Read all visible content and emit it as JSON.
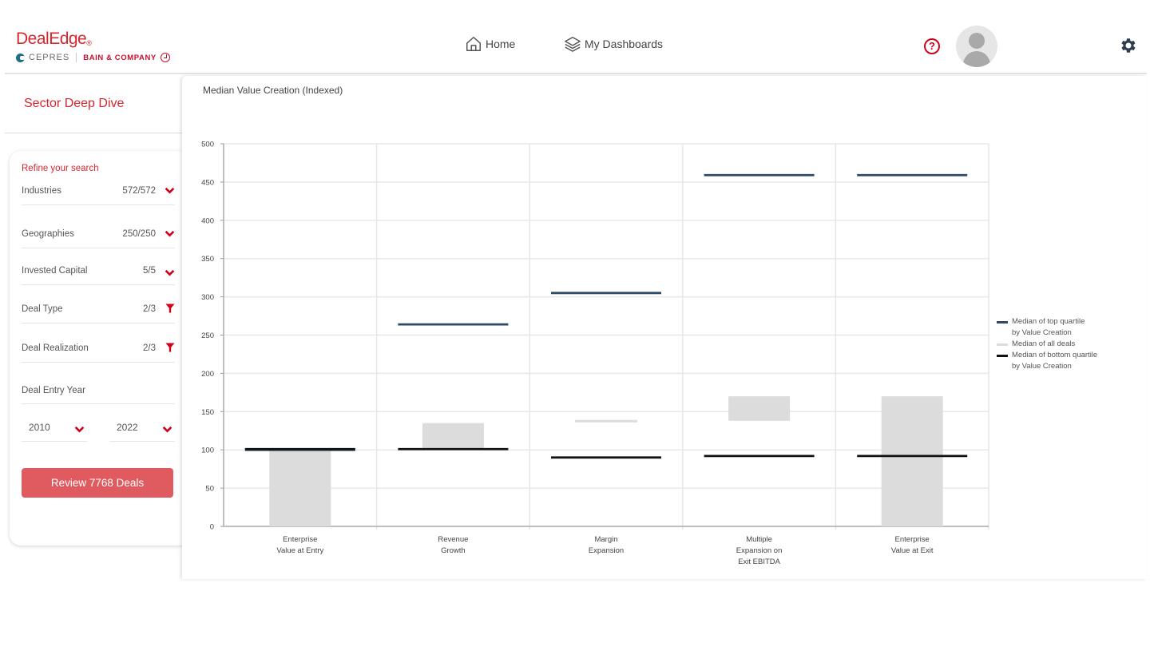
{
  "header": {
    "logo": {
      "brand": "DealEdge",
      "registered": "®",
      "partner1": "CEPRES",
      "partner2": "BAIN & COMPANY"
    },
    "nav": [
      {
        "label": "Home",
        "icon": "home-icon"
      },
      {
        "label": "My Dashboards",
        "icon": "layers-icon"
      }
    ],
    "help_symbol": "?",
    "icons": [
      "help-icon",
      "avatar",
      "gear-icon"
    ]
  },
  "sidebar": {
    "title": "Sector Deep Dive",
    "refine_label": "Refine your search",
    "filters": [
      {
        "label": "Industries",
        "value": "572/572",
        "icon": "chevron-down-icon"
      },
      {
        "label": "Geographies",
        "value": "250/250",
        "icon": "chevron-down-icon"
      },
      {
        "label": "Invested Capital",
        "value": "5/5",
        "icon": "chevron-down-icon"
      },
      {
        "label": "Deal Type",
        "value": "2/3",
        "icon": "filter-icon"
      },
      {
        "label": "Deal Realization",
        "value": "2/3",
        "icon": "filter-icon"
      }
    ],
    "entry_year_label": "Deal Entry Year",
    "year_from": "2010",
    "year_to": "2022",
    "review_button": "Review 7768 Deals"
  },
  "colors": {
    "brand_red": "#d8262f",
    "button_red": "#e05b5f",
    "top_quartile": "#2e4a66",
    "all_deals": "#dcdcdc",
    "bottom_quartile": "#111111"
  },
  "chart_data": {
    "type": "bar",
    "title": "Median Value Creation (Indexed)",
    "xlabel": "",
    "ylabel": "",
    "ylim": [
      0,
      500
    ],
    "yticks": [
      0,
      50,
      100,
      150,
      200,
      250,
      300,
      350,
      400,
      450,
      500
    ],
    "grid": true,
    "legend_position": "right",
    "categories": [
      "Enterprise Value at Entry",
      "Revenue Growth",
      "Margin Expansion",
      "Multiple Expansion on Exit EBITDA",
      "Enterprise Value at Exit"
    ],
    "category_lines": [
      [
        "Enterprise",
        "Value at Entry"
      ],
      [
        "Revenue",
        "Growth"
      ],
      [
        "Margin",
        "Expansion"
      ],
      [
        "Multiple",
        "Expansion on",
        "Exit EBITDA"
      ],
      [
        "Enterprise",
        "Value at Exit"
      ]
    ],
    "series": [
      {
        "name": "Median of top quartile by Value Creation",
        "style": "marker-line",
        "values": [
          100,
          264,
          305,
          459,
          459
        ]
      },
      {
        "name": "Median of all deals",
        "style": "waterfall-bar",
        "ranges": [
          [
            0,
            100
          ],
          [
            100,
            135
          ],
          [
            137,
            138
          ],
          [
            138,
            170
          ],
          [
            0,
            170
          ]
        ]
      },
      {
        "name": "Median of bottom quartile by Value Creation",
        "style": "marker-line",
        "values": [
          101,
          101,
          90,
          92,
          92
        ]
      }
    ],
    "legend": [
      {
        "lines": [
          "Median of top quartile",
          "by Value Creation"
        ],
        "color": "#2e4a66"
      },
      {
        "lines": [
          "Median of all deals"
        ],
        "color": "#dcdcdc"
      },
      {
        "lines": [
          "Median of bottom quartile",
          "by Value Creation"
        ],
        "color": "#111111"
      }
    ]
  }
}
